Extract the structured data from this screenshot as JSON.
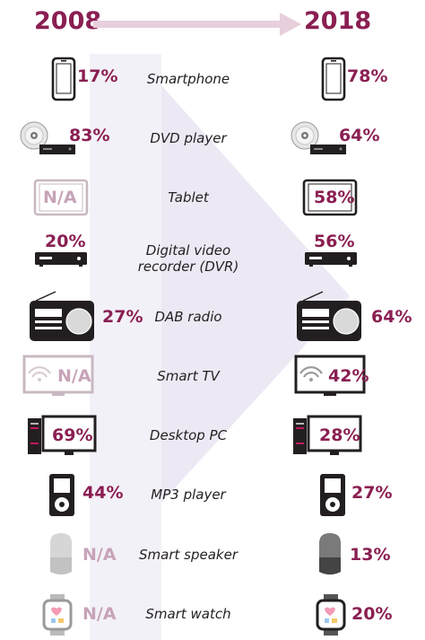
{
  "chart_data": {
    "type": "table",
    "years": [
      "2008",
      "2018"
    ],
    "rows": [
      {
        "device": "Smartphone",
        "icon": "smartphone-icon",
        "v2008": "17%",
        "v2018": "78%"
      },
      {
        "device": "DVD player",
        "icon": "dvd-player-icon",
        "v2008": "83%",
        "v2018": "64%"
      },
      {
        "device": "Tablet",
        "icon": "tablet-icon",
        "v2008": "N/A",
        "v2018": "58%"
      },
      {
        "device": "Digital video recorder (DVR)",
        "icon": "dvr-icon",
        "v2008": "20%",
        "v2018": "56%"
      },
      {
        "device": "DAB radio",
        "icon": "radio-icon",
        "v2008": "27%",
        "v2018": "64%"
      },
      {
        "device": "Smart TV",
        "icon": "smart-tv-icon",
        "v2008": "N/A",
        "v2018": "42%"
      },
      {
        "device": "Desktop PC",
        "icon": "desktop-pc-icon",
        "v2008": "69%",
        "v2018": "28%"
      },
      {
        "device": "MP3 player",
        "icon": "mp3-player-icon",
        "v2008": "44%",
        "v2018": "27%"
      },
      {
        "device": "Smart speaker",
        "icon": "smart-speaker-icon",
        "v2008": "N/A",
        "v2018": "13%"
      },
      {
        "device": "Smart watch",
        "icon": "smart-watch-icon",
        "v2008": "N/A",
        "v2018": "20%"
      }
    ]
  },
  "colors": {
    "accent": "#8a1f52",
    "na": "#c7a3b8",
    "arrow": "#e7dae3",
    "background_arrow": "#f0edf6",
    "icon": "#231f20"
  }
}
